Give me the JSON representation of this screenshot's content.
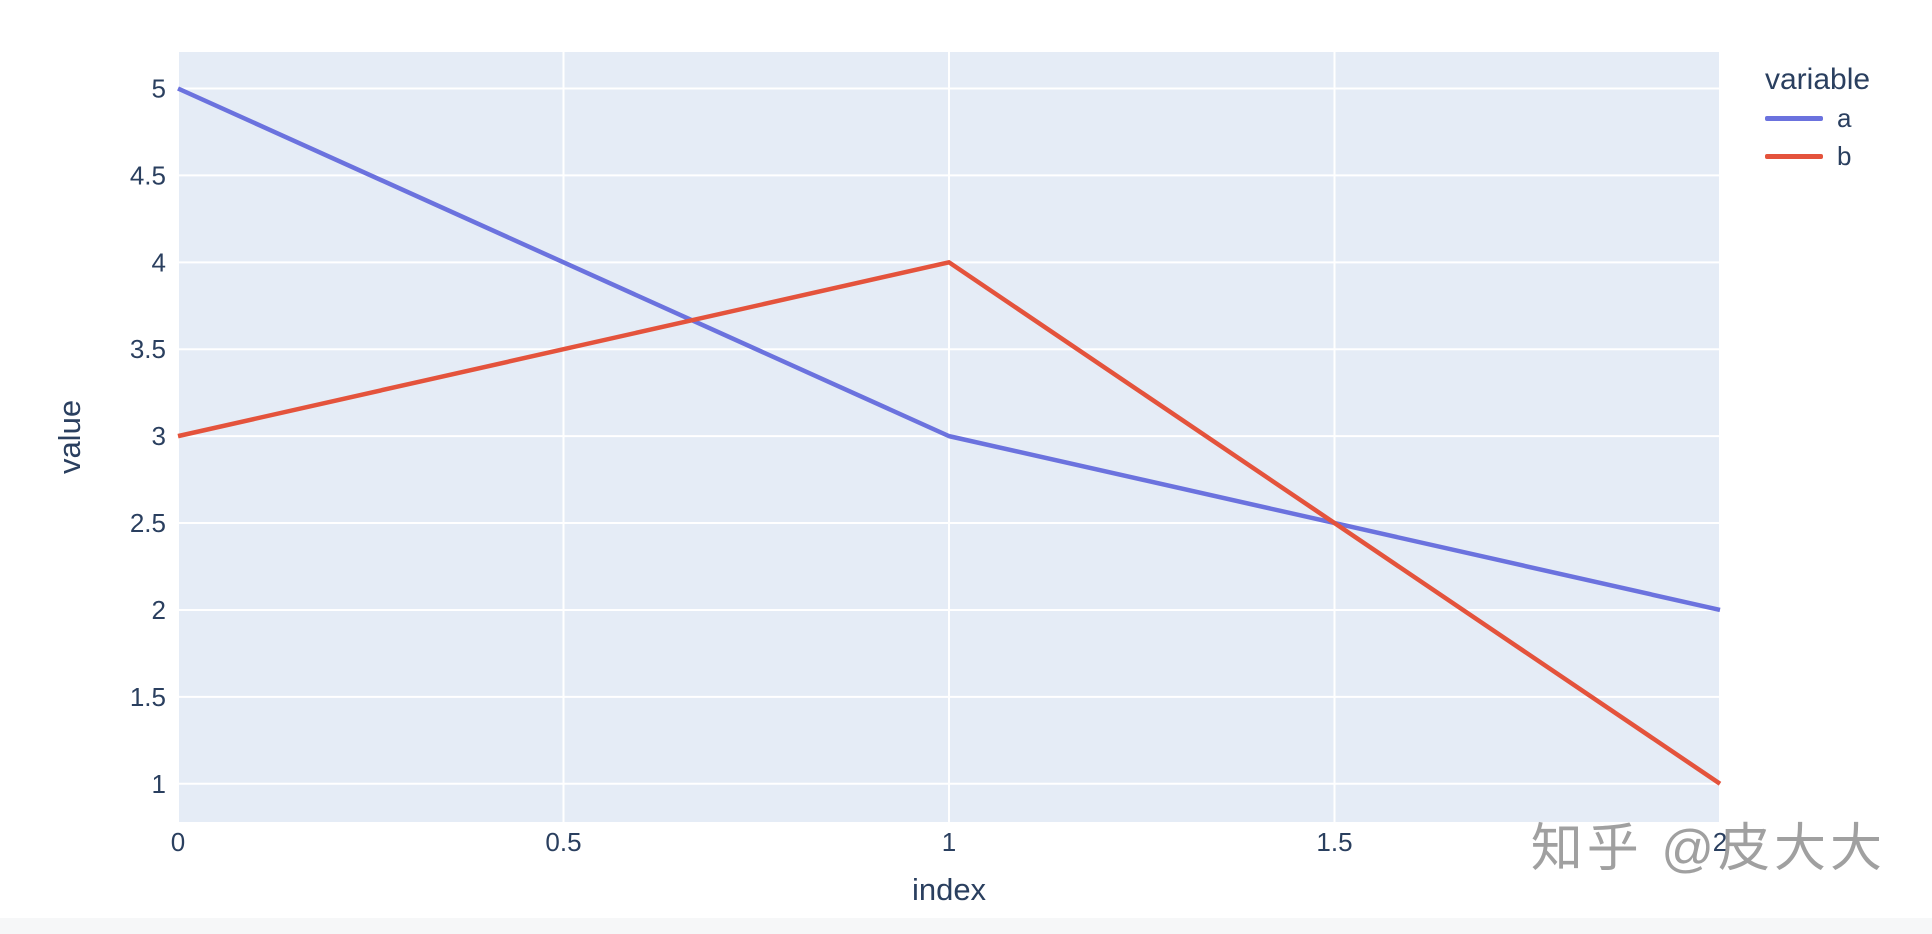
{
  "figure": {
    "watermark": "知乎 @皮大大",
    "background": "#FFFFFF",
    "footer_strip_color": "#F6F7F8"
  },
  "chart_data": {
    "type": "line",
    "title": "",
    "xlabel": "index",
    "ylabel": "value",
    "legend_title": "variable",
    "legend_position": "top-right-outside",
    "x": [
      0,
      1,
      2
    ],
    "series": [
      {
        "name": "a",
        "color": "#6B72DE",
        "values": [
          5,
          3,
          2
        ]
      },
      {
        "name": "b",
        "color": "#E4533C",
        "values": [
          3,
          4,
          1
        ]
      }
    ],
    "xlim": [
      0,
      2
    ],
    "ylim": [
      0.78,
      5.21
    ],
    "xticks": {
      "values": [
        0,
        0.5,
        1,
        1.5,
        2
      ],
      "labels": [
        "0",
        "0.5",
        "1",
        "1.5",
        "2"
      ]
    },
    "yticks": {
      "values": [
        1,
        1.5,
        2,
        2.5,
        3,
        3.5,
        4,
        4.5,
        5
      ],
      "labels": [
        "1",
        "1.5",
        "2",
        "2.5",
        "3",
        "3.5",
        "4",
        "4.5",
        "5"
      ]
    },
    "grid": true,
    "grid_color": "#FFFFFF",
    "plot_bg": "#E5ECF6",
    "text_color": "#2A3F5F",
    "line_width": 4.5
  }
}
